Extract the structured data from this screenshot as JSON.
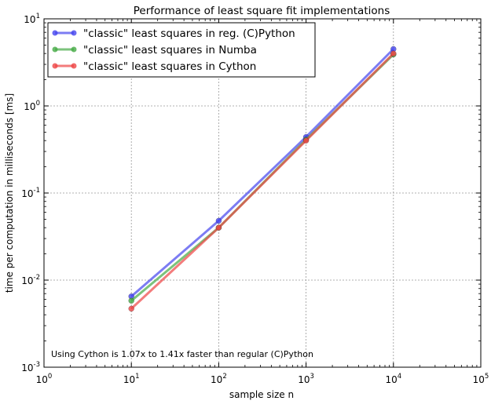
{
  "chart_data": {
    "type": "line",
    "title": "Performance of least square fit implementations",
    "xlabel": "sample size n",
    "ylabel": "time per computation in milliseconds [ms]",
    "xscale": "log",
    "yscale": "log",
    "xlim": [
      1,
      100000
    ],
    "ylim": [
      0.001,
      10
    ],
    "grid": true,
    "legend_position": "top-left",
    "x_ticks": [
      {
        "value": 1,
        "base": "10",
        "exp": "0"
      },
      {
        "value": 10,
        "base": "10",
        "exp": "1"
      },
      {
        "value": 100,
        "base": "10",
        "exp": "2"
      },
      {
        "value": 1000,
        "base": "10",
        "exp": "3"
      },
      {
        "value": 10000,
        "base": "10",
        "exp": "4"
      },
      {
        "value": 100000,
        "base": "10",
        "exp": "5"
      }
    ],
    "y_ticks": [
      {
        "value": 0.001,
        "base": "10",
        "exp": "-3"
      },
      {
        "value": 0.01,
        "base": "10",
        "exp": "-2"
      },
      {
        "value": 0.1,
        "base": "10",
        "exp": "-1"
      },
      {
        "value": 1,
        "base": "10",
        "exp": "0"
      },
      {
        "value": 10,
        "base": "10",
        "exp": "1"
      }
    ],
    "x": [
      10,
      100,
      1000,
      10000
    ],
    "series": [
      {
        "name": "\"classic\" least squares in reg. (C)Python",
        "color": "#4444ee",
        "values": [
          0.0065,
          0.048,
          0.44,
          4.5
        ]
      },
      {
        "name": "\"classic\" least squares in Numba",
        "color": "#44aa44",
        "values": [
          0.0058,
          0.04,
          0.41,
          3.9
        ]
      },
      {
        "name": "\"classic\" least squares in Cython",
        "color": "#ee4444",
        "values": [
          0.0047,
          0.04,
          0.4,
          4.0
        ]
      }
    ],
    "annotation": "Using Cython is 1.07x to 1.41x faster than regular (C)Python"
  }
}
